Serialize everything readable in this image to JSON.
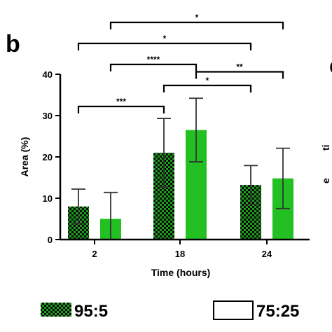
{
  "panel_label": "b",
  "next_panel_label": "c",
  "next_panel_fragments": [
    "ti",
    "e"
  ],
  "chart_data": {
    "type": "bar",
    "title": "",
    "xlabel": "Time (hours)",
    "ylabel": "Area (%)",
    "ylim": [
      0,
      40
    ],
    "yticks": [
      0,
      10,
      20,
      30,
      40
    ],
    "categories": [
      "2",
      "18",
      "24"
    ],
    "series": [
      {
        "name": "95:5",
        "pattern": "checkerboard",
        "color": "#1f9e1f",
        "values": [
          8,
          21,
          13.2
        ],
        "errors": [
          4.2,
          8.3,
          4.7
        ]
      },
      {
        "name": "75:25",
        "pattern": "solid",
        "color": "#22c022",
        "values": [
          5,
          26.5,
          14.8
        ],
        "errors": [
          6.4,
          7.7,
          7.3
        ]
      }
    ],
    "significance": [
      {
        "label": "*",
        "from": [
          0,
          1
        ],
        "to": [
          2,
          1
        ],
        "level": 4
      },
      {
        "label": "*",
        "from": [
          0,
          0
        ],
        "to": [
          2,
          0
        ],
        "level": 3
      },
      {
        "label": "****",
        "from": [
          0,
          1
        ],
        "to": [
          1,
          1
        ],
        "level": 2
      },
      {
        "label": "**",
        "from": [
          1,
          1
        ],
        "to": [
          2,
          1
        ],
        "level": 1.65
      },
      {
        "label": "*",
        "from": [
          1,
          0
        ],
        "to": [
          2,
          0
        ],
        "level": 1
      },
      {
        "label": "***",
        "from": [
          0,
          0
        ],
        "to": [
          1,
          0
        ],
        "level": 0
      }
    ],
    "legend": {
      "position": "bottom"
    }
  }
}
